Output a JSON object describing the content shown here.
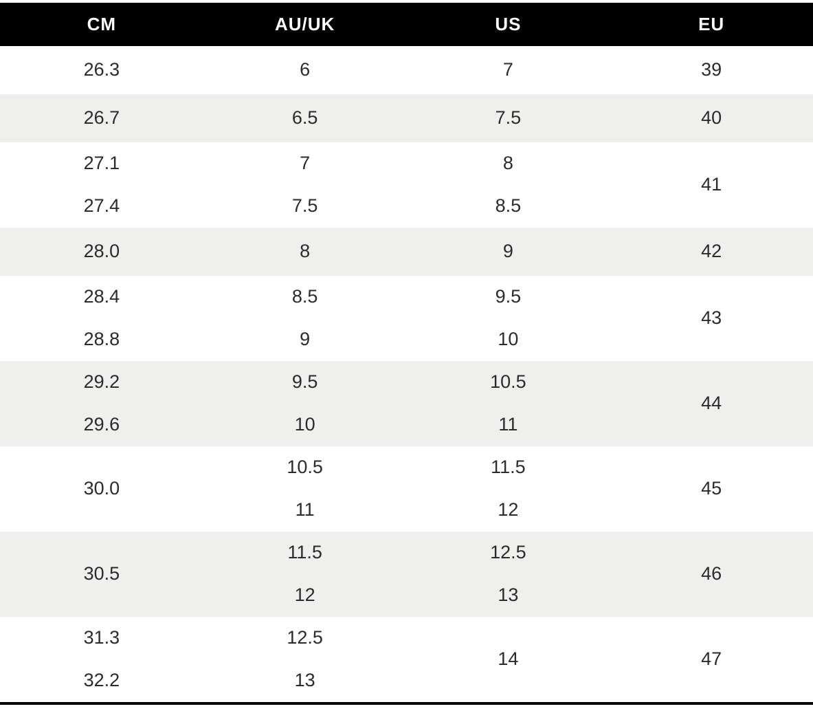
{
  "header": {
    "columns": [
      "CM",
      "AU/UK",
      "US",
      "EU"
    ]
  },
  "column_keys": [
    "cm",
    "auuk",
    "us",
    "eu"
  ],
  "rows": [
    {
      "shade": "white",
      "size": "single",
      "cells": [
        [
          "26.3"
        ],
        [
          "6"
        ],
        [
          "7"
        ],
        [
          "39"
        ]
      ]
    },
    {
      "shade": "gray",
      "size": "single",
      "cells": [
        [
          "26.7"
        ],
        [
          "6.5"
        ],
        [
          "7.5"
        ],
        [
          "40"
        ]
      ]
    },
    {
      "shade": "white",
      "size": "double",
      "cells": [
        [
          "27.1",
          "27.4"
        ],
        [
          "7",
          "7.5"
        ],
        [
          "8",
          "8.5"
        ],
        [
          "41"
        ]
      ]
    },
    {
      "shade": "gray",
      "size": "single",
      "cells": [
        [
          "28.0"
        ],
        [
          "8"
        ],
        [
          "9"
        ],
        [
          "42"
        ]
      ]
    },
    {
      "shade": "white",
      "size": "double",
      "cells": [
        [
          "28.4",
          "28.8"
        ],
        [
          "8.5",
          "9"
        ],
        [
          "9.5",
          "10"
        ],
        [
          "43"
        ]
      ]
    },
    {
      "shade": "gray",
      "size": "double",
      "cells": [
        [
          "29.2",
          "29.6"
        ],
        [
          "9.5",
          "10"
        ],
        [
          "10.5",
          "11"
        ],
        [
          "44"
        ]
      ]
    },
    {
      "shade": "white",
      "size": "double",
      "cells": [
        [
          "30.0"
        ],
        [
          "10.5",
          "11"
        ],
        [
          "11.5",
          "12"
        ],
        [
          "45"
        ]
      ]
    },
    {
      "shade": "gray",
      "size": "double",
      "cells": [
        [
          "30.5"
        ],
        [
          "11.5",
          "12"
        ],
        [
          "12.5",
          "13"
        ],
        [
          "46"
        ]
      ]
    },
    {
      "shade": "white",
      "size": "double",
      "cells": [
        [
          "31.3",
          "32.2"
        ],
        [
          "12.5",
          "13"
        ],
        [
          "14"
        ],
        [
          "47"
        ]
      ]
    }
  ],
  "colors": {
    "header_bg": "#000000",
    "header_text": "#ffffff",
    "row_white_bg": "#ffffff",
    "row_gray_bg": "#efefee",
    "body_text": "#2b2b2d",
    "bottom_rule": "#000000"
  }
}
